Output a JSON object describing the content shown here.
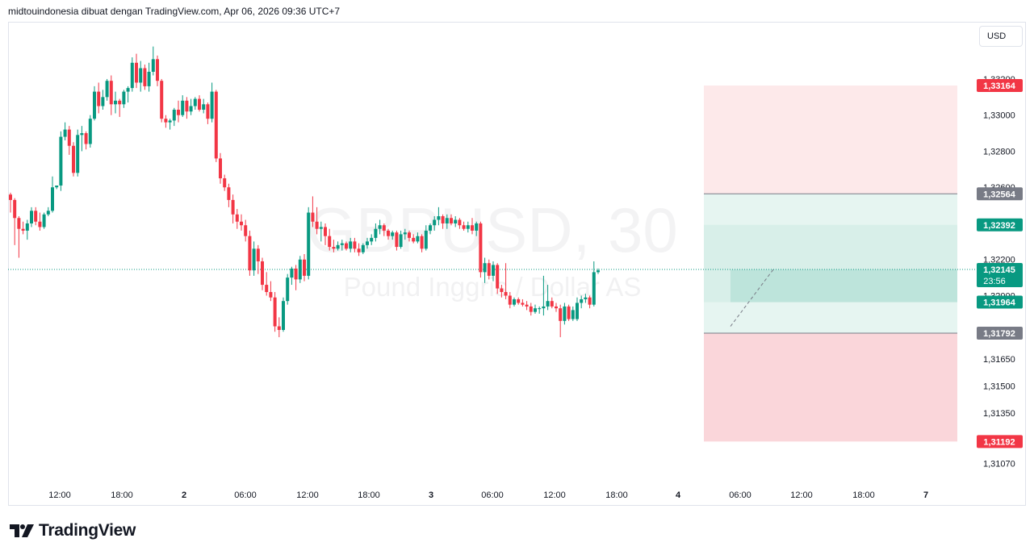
{
  "header": {
    "caption": "midtouindonesia dibuat dengan TradingView.com, Apr 06, 2026 09:36 UTC+7"
  },
  "currency_button": "USD",
  "brand": {
    "name": "TradingView",
    "icon": "tradingview-logo-icon"
  },
  "colors": {
    "up": "#089981",
    "down": "#f23645",
    "grid_line": "#e0e3eb",
    "axis_text": "#131722",
    "target_zone": "#d1ece6",
    "stop_zone": "#fde3e5",
    "entry_label": "#787b86"
  },
  "chart_data": {
    "type": "candlestick",
    "watermark": {
      "symbol": "GBPUSD, 30",
      "description": "Pound Inggris / Dollar AS"
    },
    "x_ticks": [
      "12:00",
      "18:00",
      "2",
      "06:00",
      "12:00",
      "18:00",
      "3",
      "06:00",
      "12:00",
      "18:00",
      "4",
      "06:00",
      "12:00",
      "18:00",
      "7"
    ],
    "y_ticks": [
      "1,33200",
      "1,33000",
      "1,32800",
      "1,32600",
      "1,32200",
      "1,32000",
      "1,31650",
      "1,31500",
      "1,31350",
      "1,31210",
      "1,31070"
    ],
    "ylim": [
      1.3097,
      1.3345
    ],
    "grid": false,
    "candles": [
      {
        "o": 1.3256,
        "h": 1.3257,
        "l": 1.3246,
        "c": 1.3253
      },
      {
        "o": 1.3253,
        "h": 1.3254,
        "l": 1.3228,
        "c": 1.3243
      },
      {
        "o": 1.3243,
        "h": 1.3244,
        "l": 1.3221,
        "c": 1.3237
      },
      {
        "o": 1.3237,
        "h": 1.3241,
        "l": 1.3234,
        "c": 1.3236
      },
      {
        "o": 1.3236,
        "h": 1.3242,
        "l": 1.3231,
        "c": 1.324
      },
      {
        "o": 1.324,
        "h": 1.3249,
        "l": 1.3238,
        "c": 1.3247
      },
      {
        "o": 1.3247,
        "h": 1.3249,
        "l": 1.3239,
        "c": 1.3241
      },
      {
        "o": 1.3241,
        "h": 1.3246,
        "l": 1.3236,
        "c": 1.3238
      },
      {
        "o": 1.3238,
        "h": 1.3246,
        "l": 1.3237,
        "c": 1.3245
      },
      {
        "o": 1.3245,
        "h": 1.3249,
        "l": 1.3244,
        "c": 1.3247
      },
      {
        "o": 1.3247,
        "h": 1.3266,
        "l": 1.3246,
        "c": 1.326
      },
      {
        "o": 1.326,
        "h": 1.3261,
        "l": 1.3259,
        "c": 1.3261
      },
      {
        "o": 1.3261,
        "h": 1.3291,
        "l": 1.3258,
        "c": 1.3288
      },
      {
        "o": 1.3288,
        "h": 1.3296,
        "l": 1.3286,
        "c": 1.3292
      },
      {
        "o": 1.3292,
        "h": 1.3294,
        "l": 1.3278,
        "c": 1.3283
      },
      {
        "o": 1.3283,
        "h": 1.3285,
        "l": 1.3266,
        "c": 1.3268
      },
      {
        "o": 1.3268,
        "h": 1.3292,
        "l": 1.3266,
        "c": 1.3289
      },
      {
        "o": 1.3289,
        "h": 1.3294,
        "l": 1.328,
        "c": 1.329
      },
      {
        "o": 1.329,
        "h": 1.3291,
        "l": 1.3281,
        "c": 1.3284
      },
      {
        "o": 1.3284,
        "h": 1.33,
        "l": 1.3282,
        "c": 1.3298
      },
      {
        "o": 1.3298,
        "h": 1.3316,
        "l": 1.3297,
        "c": 1.3313
      },
      {
        "o": 1.3313,
        "h": 1.3318,
        "l": 1.3301,
        "c": 1.3305
      },
      {
        "o": 1.3305,
        "h": 1.3314,
        "l": 1.3303,
        "c": 1.331
      },
      {
        "o": 1.331,
        "h": 1.332,
        "l": 1.3308,
        "c": 1.3319
      },
      {
        "o": 1.3319,
        "h": 1.3322,
        "l": 1.33,
        "c": 1.3306
      },
      {
        "o": 1.3306,
        "h": 1.3313,
        "l": 1.3301,
        "c": 1.3308
      },
      {
        "o": 1.3308,
        "h": 1.3309,
        "l": 1.3299,
        "c": 1.3306
      },
      {
        "o": 1.3306,
        "h": 1.3314,
        "l": 1.3304,
        "c": 1.3313
      },
      {
        "o": 1.3313,
        "h": 1.3316,
        "l": 1.3307,
        "c": 1.3315
      },
      {
        "o": 1.3315,
        "h": 1.3332,
        "l": 1.3313,
        "c": 1.3329
      },
      {
        "o": 1.3329,
        "h": 1.3334,
        "l": 1.3315,
        "c": 1.3318
      },
      {
        "o": 1.3318,
        "h": 1.333,
        "l": 1.3313,
        "c": 1.3326
      },
      {
        "o": 1.3326,
        "h": 1.3328,
        "l": 1.3314,
        "c": 1.3316
      },
      {
        "o": 1.3316,
        "h": 1.3329,
        "l": 1.3313,
        "c": 1.3324
      },
      {
        "o": 1.3324,
        "h": 1.3338,
        "l": 1.3322,
        "c": 1.3331
      },
      {
        "o": 1.3331,
        "h": 1.3333,
        "l": 1.3316,
        "c": 1.3319
      },
      {
        "o": 1.3319,
        "h": 1.332,
        "l": 1.3296,
        "c": 1.3298
      },
      {
        "o": 1.3298,
        "h": 1.33,
        "l": 1.3293,
        "c": 1.3296
      },
      {
        "o": 1.3296,
        "h": 1.3298,
        "l": 1.3292,
        "c": 1.3297
      },
      {
        "o": 1.3297,
        "h": 1.3304,
        "l": 1.3294,
        "c": 1.3303
      },
      {
        "o": 1.3303,
        "h": 1.3308,
        "l": 1.3296,
        "c": 1.33
      },
      {
        "o": 1.33,
        "h": 1.3311,
        "l": 1.3299,
        "c": 1.3308
      },
      {
        "o": 1.3308,
        "h": 1.331,
        "l": 1.3298,
        "c": 1.3302
      },
      {
        "o": 1.3302,
        "h": 1.3309,
        "l": 1.33,
        "c": 1.3305
      },
      {
        "o": 1.3305,
        "h": 1.331,
        "l": 1.3303,
        "c": 1.3309
      },
      {
        "o": 1.3309,
        "h": 1.3311,
        "l": 1.3302,
        "c": 1.3303
      },
      {
        "o": 1.3303,
        "h": 1.3309,
        "l": 1.3301,
        "c": 1.3306
      },
      {
        "o": 1.3306,
        "h": 1.3307,
        "l": 1.3295,
        "c": 1.3298
      },
      {
        "o": 1.3298,
        "h": 1.3318,
        "l": 1.3296,
        "c": 1.3313
      },
      {
        "o": 1.3313,
        "h": 1.3314,
        "l": 1.3274,
        "c": 1.3276
      },
      {
        "o": 1.3276,
        "h": 1.3279,
        "l": 1.3262,
        "c": 1.3265
      },
      {
        "o": 1.3265,
        "h": 1.3267,
        "l": 1.3258,
        "c": 1.326
      },
      {
        "o": 1.326,
        "h": 1.3262,
        "l": 1.3249,
        "c": 1.3253
      },
      {
        "o": 1.3253,
        "h": 1.3256,
        "l": 1.324,
        "c": 1.3245
      },
      {
        "o": 1.3245,
        "h": 1.3248,
        "l": 1.3237,
        "c": 1.3241
      },
      {
        "o": 1.3241,
        "h": 1.3245,
        "l": 1.3236,
        "c": 1.3239
      },
      {
        "o": 1.3239,
        "h": 1.3242,
        "l": 1.323,
        "c": 1.3233
      },
      {
        "o": 1.3233,
        "h": 1.3236,
        "l": 1.3211,
        "c": 1.3214
      },
      {
        "o": 1.3214,
        "h": 1.323,
        "l": 1.3211,
        "c": 1.3226
      },
      {
        "o": 1.3226,
        "h": 1.3228,
        "l": 1.3212,
        "c": 1.3219
      },
      {
        "o": 1.3219,
        "h": 1.3221,
        "l": 1.3203,
        "c": 1.3206
      },
      {
        "o": 1.3206,
        "h": 1.3213,
        "l": 1.32,
        "c": 1.3202
      },
      {
        "o": 1.3202,
        "h": 1.3208,
        "l": 1.3197,
        "c": 1.3199
      },
      {
        "o": 1.3199,
        "h": 1.3202,
        "l": 1.318,
        "c": 1.3183
      },
      {
        "o": 1.3183,
        "h": 1.3188,
        "l": 1.3177,
        "c": 1.3181
      },
      {
        "o": 1.3181,
        "h": 1.3199,
        "l": 1.318,
        "c": 1.3197
      },
      {
        "o": 1.3197,
        "h": 1.3212,
        "l": 1.3195,
        "c": 1.321
      },
      {
        "o": 1.321,
        "h": 1.3216,
        "l": 1.3206,
        "c": 1.3215
      },
      {
        "o": 1.3215,
        "h": 1.3217,
        "l": 1.3203,
        "c": 1.3209
      },
      {
        "o": 1.3209,
        "h": 1.3222,
        "l": 1.3207,
        "c": 1.322
      },
      {
        "o": 1.322,
        "h": 1.3223,
        "l": 1.3208,
        "c": 1.3211
      },
      {
        "o": 1.3211,
        "h": 1.3249,
        "l": 1.3209,
        "c": 1.3246
      },
      {
        "o": 1.3246,
        "h": 1.3255,
        "l": 1.3238,
        "c": 1.3241
      },
      {
        "o": 1.3241,
        "h": 1.3249,
        "l": 1.3234,
        "c": 1.3237
      },
      {
        "o": 1.3237,
        "h": 1.3241,
        "l": 1.323,
        "c": 1.3238
      },
      {
        "o": 1.3238,
        "h": 1.324,
        "l": 1.3228,
        "c": 1.3233
      },
      {
        "o": 1.3233,
        "h": 1.3237,
        "l": 1.3225,
        "c": 1.3227
      },
      {
        "o": 1.3227,
        "h": 1.3231,
        "l": 1.3224,
        "c": 1.3226
      },
      {
        "o": 1.3226,
        "h": 1.323,
        "l": 1.3225,
        "c": 1.3228
      },
      {
        "o": 1.3228,
        "h": 1.3231,
        "l": 1.3225,
        "c": 1.3229
      },
      {
        "o": 1.3229,
        "h": 1.323,
        "l": 1.3225,
        "c": 1.3226
      },
      {
        "o": 1.3226,
        "h": 1.3232,
        "l": 1.3224,
        "c": 1.323
      },
      {
        "o": 1.323,
        "h": 1.3232,
        "l": 1.3224,
        "c": 1.3226
      },
      {
        "o": 1.3226,
        "h": 1.3229,
        "l": 1.3222,
        "c": 1.3224
      },
      {
        "o": 1.3224,
        "h": 1.3229,
        "l": 1.3223,
        "c": 1.3228
      },
      {
        "o": 1.3228,
        "h": 1.3232,
        "l": 1.3226,
        "c": 1.323
      },
      {
        "o": 1.323,
        "h": 1.3234,
        "l": 1.3228,
        "c": 1.3232
      },
      {
        "o": 1.3232,
        "h": 1.324,
        "l": 1.323,
        "c": 1.3237
      },
      {
        "o": 1.3237,
        "h": 1.3242,
        "l": 1.3234,
        "c": 1.3239
      },
      {
        "o": 1.3239,
        "h": 1.324,
        "l": 1.3233,
        "c": 1.3236
      },
      {
        "o": 1.3236,
        "h": 1.3237,
        "l": 1.3231,
        "c": 1.3233
      },
      {
        "o": 1.3233,
        "h": 1.3236,
        "l": 1.3231,
        "c": 1.3235
      },
      {
        "o": 1.3235,
        "h": 1.3236,
        "l": 1.3225,
        "c": 1.3227
      },
      {
        "o": 1.3227,
        "h": 1.3236,
        "l": 1.3226,
        "c": 1.3234
      },
      {
        "o": 1.3234,
        "h": 1.3237,
        "l": 1.3231,
        "c": 1.3235
      },
      {
        "o": 1.3235,
        "h": 1.3236,
        "l": 1.323,
        "c": 1.3232
      },
      {
        "o": 1.3232,
        "h": 1.3234,
        "l": 1.3229,
        "c": 1.323
      },
      {
        "o": 1.323,
        "h": 1.3235,
        "l": 1.3229,
        "c": 1.3233
      },
      {
        "o": 1.3233,
        "h": 1.3234,
        "l": 1.3224,
        "c": 1.3226
      },
      {
        "o": 1.3226,
        "h": 1.3239,
        "l": 1.3225,
        "c": 1.3236
      },
      {
        "o": 1.3236,
        "h": 1.324,
        "l": 1.3234,
        "c": 1.3239
      },
      {
        "o": 1.3239,
        "h": 1.3244,
        "l": 1.3236,
        "c": 1.3242
      },
      {
        "o": 1.3242,
        "h": 1.3249,
        "l": 1.3239,
        "c": 1.3244
      },
      {
        "o": 1.3244,
        "h": 1.3245,
        "l": 1.3237,
        "c": 1.324
      },
      {
        "o": 1.324,
        "h": 1.3245,
        "l": 1.3237,
        "c": 1.3243
      },
      {
        "o": 1.3243,
        "h": 1.3245,
        "l": 1.3239,
        "c": 1.324
      },
      {
        "o": 1.324,
        "h": 1.3244,
        "l": 1.3238,
        "c": 1.3242
      },
      {
        "o": 1.3242,
        "h": 1.3243,
        "l": 1.3237,
        "c": 1.3239
      },
      {
        "o": 1.3239,
        "h": 1.3241,
        "l": 1.3236,
        "c": 1.3237
      },
      {
        "o": 1.3237,
        "h": 1.3241,
        "l": 1.3235,
        "c": 1.3239
      },
      {
        "o": 1.3239,
        "h": 1.3243,
        "l": 1.3234,
        "c": 1.3236
      },
      {
        "o": 1.3236,
        "h": 1.3241,
        "l": 1.3233,
        "c": 1.324
      },
      {
        "o": 1.324,
        "h": 1.3241,
        "l": 1.321,
        "c": 1.3213
      },
      {
        "o": 1.3213,
        "h": 1.3221,
        "l": 1.3207,
        "c": 1.3218
      },
      {
        "o": 1.3218,
        "h": 1.322,
        "l": 1.3209,
        "c": 1.3211
      },
      {
        "o": 1.3211,
        "h": 1.3219,
        "l": 1.3208,
        "c": 1.3217
      },
      {
        "o": 1.3217,
        "h": 1.3218,
        "l": 1.3201,
        "c": 1.3204
      },
      {
        "o": 1.3204,
        "h": 1.3206,
        "l": 1.3199,
        "c": 1.3202
      },
      {
        "o": 1.3202,
        "h": 1.3218,
        "l": 1.3198,
        "c": 1.32
      },
      {
        "o": 1.32,
        "h": 1.3202,
        "l": 1.3193,
        "c": 1.3195
      },
      {
        "o": 1.3195,
        "h": 1.3199,
        "l": 1.3194,
        "c": 1.3198
      },
      {
        "o": 1.3198,
        "h": 1.3199,
        "l": 1.3195,
        "c": 1.3196
      },
      {
        "o": 1.3196,
        "h": 1.3198,
        "l": 1.3194,
        "c": 1.3195
      },
      {
        "o": 1.3195,
        "h": 1.3197,
        "l": 1.3192,
        "c": 1.3194
      },
      {
        "o": 1.3194,
        "h": 1.3196,
        "l": 1.3189,
        "c": 1.3191
      },
      {
        "o": 1.3191,
        "h": 1.3195,
        "l": 1.319,
        "c": 1.3193
      },
      {
        "o": 1.3193,
        "h": 1.3194,
        "l": 1.319,
        "c": 1.3193
      },
      {
        "o": 1.3193,
        "h": 1.3211,
        "l": 1.3189,
        "c": 1.3194
      },
      {
        "o": 1.3194,
        "h": 1.3206,
        "l": 1.3192,
        "c": 1.3197
      },
      {
        "o": 1.3197,
        "h": 1.3199,
        "l": 1.3193,
        "c": 1.3194
      },
      {
        "o": 1.3194,
        "h": 1.3196,
        "l": 1.3191,
        "c": 1.3193
      },
      {
        "o": 1.3193,
        "h": 1.3195,
        "l": 1.3177,
        "c": 1.3186
      },
      {
        "o": 1.3186,
        "h": 1.3196,
        "l": 1.3184,
        "c": 1.3194
      },
      {
        "o": 1.3194,
        "h": 1.3195,
        "l": 1.3186,
        "c": 1.3187
      },
      {
        "o": 1.3187,
        "h": 1.3194,
        "l": 1.3186,
        "c": 1.3192
      },
      {
        "o": 1.3187,
        "h": 1.3199,
        "l": 1.3186,
        "c": 1.3196
      },
      {
        "o": 1.3196,
        "h": 1.32,
        "l": 1.3193,
        "c": 1.3198
      },
      {
        "o": 1.3198,
        "h": 1.3201,
        "l": 1.3196,
        "c": 1.3199
      },
      {
        "o": 1.3199,
        "h": 1.32,
        "l": 1.3193,
        "c": 1.3195
      },
      {
        "o": 1.3195,
        "h": 1.3219,
        "l": 1.3194,
        "c": 1.3213
      },
      {
        "o": 1.3213,
        "h": 1.3215,
        "l": 1.3212,
        "c": 1.3214
      }
    ],
    "current_price": {
      "value": "1,32145",
      "countdown": "23:56",
      "price": 1.32145
    },
    "position": {
      "top_stop": {
        "label": "1,33164",
        "price": 1.33164
      },
      "upper_entry": {
        "label": "1,32564",
        "price": 1.32564
      },
      "upper_target": {
        "label": "1,32392",
        "price": 1.32392
      },
      "lower_target": {
        "label": "1,31964",
        "price": 1.31964
      },
      "lower_entry": {
        "label": "1,31792",
        "price": 1.31792
      },
      "bottom_stop": {
        "label": "1,31192",
        "price": 1.31192
      }
    }
  }
}
